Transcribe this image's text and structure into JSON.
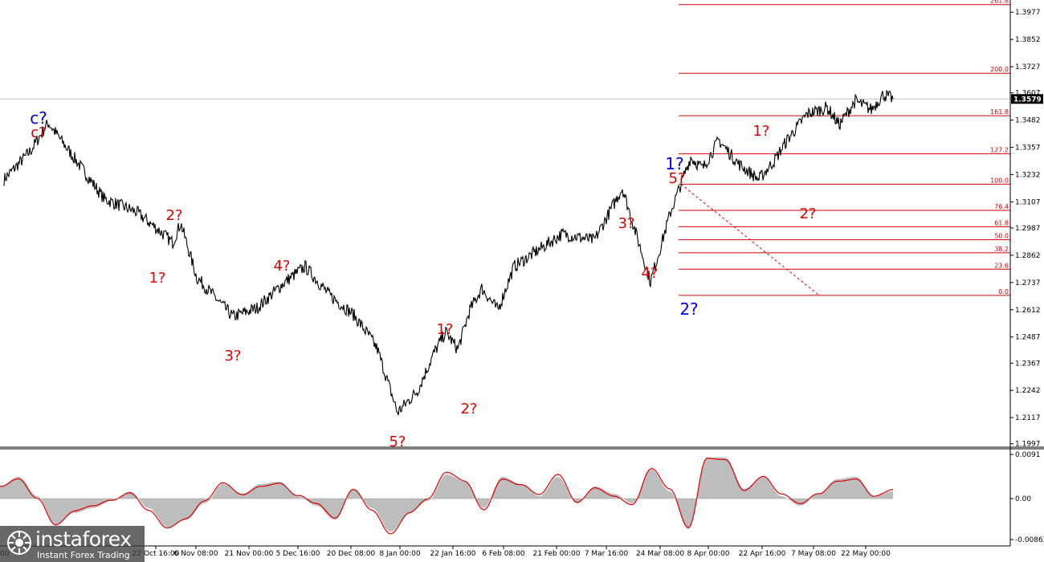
{
  "chart_data": [
    {
      "type": "line",
      "name": "price",
      "y_ticks": [
        1.3977,
        1.3852,
        1.3727,
        1.3607,
        1.3482,
        1.3357,
        1.3232,
        1.3107,
        1.2987,
        1.2862,
        1.2737,
        1.2612,
        1.2487,
        1.2367,
        1.2242,
        1.2117,
        1.1997
      ],
      "ylim": [
        1.1985,
        1.4022
      ],
      "x_ticks": [
        "22 Oct 16:00",
        "6 Nov 08:00",
        "21 Nov 00:00",
        "5 Dec 16:00",
        "20 Dec 08:00",
        "8 Jan 00:00",
        "22 Jan 16:00",
        "6 Feb 08:00",
        "21 Feb 00:00",
        "7 Mar 16:00",
        "24 Mar 08:00",
        "8 Apr 00:00",
        "22 Apr 16:00",
        "7 May 08:00",
        "22 May 00:00"
      ],
      "x_tick_first_partial": "00",
      "current_price": 1.3579,
      "close_values": [
        1.321,
        1.334,
        1.347,
        1.338,
        1.312,
        1.306,
        1.297,
        1.292,
        1.301,
        1.276,
        1.258,
        1.262,
        1.274,
        1.281,
        1.268,
        1.259,
        1.249,
        1.243,
        1.214,
        1.224,
        1.241,
        1.251,
        1.243,
        1.261,
        1.271,
        1.261,
        1.281,
        1.291,
        1.296,
        1.293,
        1.317,
        1.274,
        1.306,
        1.319,
        1.331,
        1.326,
        1.339,
        1.328,
        1.321,
        1.33,
        1.339,
        1.351,
        1.354,
        1.346,
        1.357
      ],
      "fibonacci": {
        "levels": [
          {
            "label": "261.8",
            "price": 1.4012
          },
          {
            "label": "200.0",
            "price": 1.3697
          },
          {
            "label": "161.8",
            "price": 1.3502
          },
          {
            "label": "127.2",
            "price": 1.3327
          },
          {
            "label": "100.0",
            "price": 1.3188
          },
          {
            "label": "76.4",
            "price": 1.3068
          },
          {
            "label": "61.8",
            "price": 1.2993
          },
          {
            "label": "50.0",
            "price": 1.2933
          },
          {
            "label": "38.2",
            "price": 1.2873
          },
          {
            "label": "23.6",
            "price": 1.2798
          },
          {
            "label": "0.0",
            "price": 1.2678
          }
        ]
      },
      "wave_labels": [
        {
          "text": "c?",
          "color": "blue"
        },
        {
          "text": "c?",
          "color": "red"
        },
        {
          "text": "2?",
          "color": "red"
        },
        {
          "text": "1?",
          "color": "red"
        },
        {
          "text": "4?",
          "color": "red"
        },
        {
          "text": "3?",
          "color": "red"
        },
        {
          "text": "1?",
          "color": "red"
        },
        {
          "text": "5?",
          "color": "red"
        },
        {
          "text": "2?",
          "color": "red"
        },
        {
          "text": "3?",
          "color": "red"
        },
        {
          "text": "4?",
          "color": "red"
        },
        {
          "text": "1?",
          "color": "blue"
        },
        {
          "text": "5?",
          "color": "red"
        },
        {
          "text": "2?",
          "color": "blue"
        },
        {
          "text": "1?",
          "color": "red"
        },
        {
          "text": "2?",
          "color": "red"
        }
      ]
    },
    {
      "type": "area",
      "name": "oscillator",
      "y_ticks": [
        0.0091,
        0.0,
        -0.00862
      ],
      "ylim": [
        -0.0095,
        0.01
      ],
      "values": [
        0.0025,
        0.0045,
        0.0005,
        -0.0055,
        -0.003,
        -0.002,
        -0.0005,
        0.0015,
        -0.002,
        -0.006,
        -0.0045,
        -0.001,
        0.003,
        0.001,
        0.003,
        0.0035,
        0.0005,
        -0.0015,
        -0.0045,
        0.002,
        -0.002,
        -0.007,
        -0.003,
        -0.0005,
        0.005,
        0.0035,
        -0.002,
        0.0045,
        0.003,
        0.0005,
        0.0045,
        -0.001,
        0.0025,
        0.001,
        -0.001,
        0.006,
        0.0015,
        -0.0065,
        0.0085,
        0.0085,
        0.002,
        0.0045,
        0.0005,
        -0.0015,
        0.001,
        0.004,
        0.0045,
        0.0005,
        0.0015
      ]
    }
  ],
  "logo": {
    "brand": "instaforex",
    "tagline": "Instant Forex Trading"
  }
}
